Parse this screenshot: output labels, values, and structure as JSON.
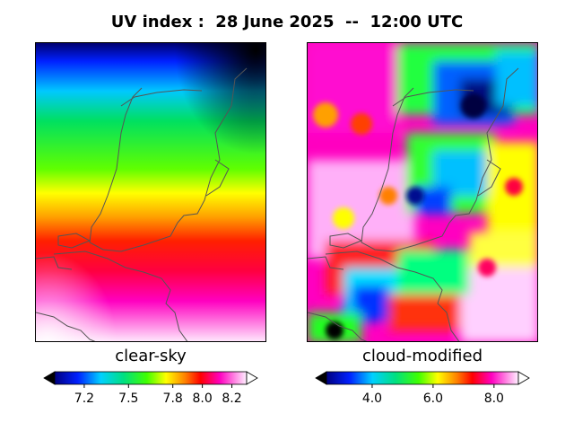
{
  "title": "UV index :  28 June 2025  --  12:00 UTC",
  "panels": [
    {
      "caption": "clear-sky"
    },
    {
      "caption": "cloud-modified"
    }
  ],
  "chart_data": [
    {
      "type": "heatmap",
      "title": "clear-sky",
      "colormap": "gist_ncar",
      "colorbar": {
        "range": [
          7.0,
          8.3
        ],
        "ticks": [
          7.2,
          7.5,
          7.8,
          8.0,
          8.2
        ],
        "extend": "both",
        "orientation": "horizontal"
      },
      "description_values": {
        "north_min": 7.05,
        "south_max": 8.25
      },
      "grid": false
    },
    {
      "type": "heatmap",
      "title": "cloud-modified",
      "colormap": "gist_ncar",
      "colorbar": {
        "range": [
          2.5,
          8.8
        ],
        "ticks": [
          4.0,
          6.0,
          8.0
        ],
        "extend": "both",
        "orientation": "horizontal"
      },
      "grid": false
    }
  ],
  "tick_labels": {
    "left": [
      "7.2",
      "7.5",
      "7.8",
      "8.0",
      "8.2"
    ],
    "right": [
      "4.0",
      "6.0",
      "8.0"
    ]
  }
}
